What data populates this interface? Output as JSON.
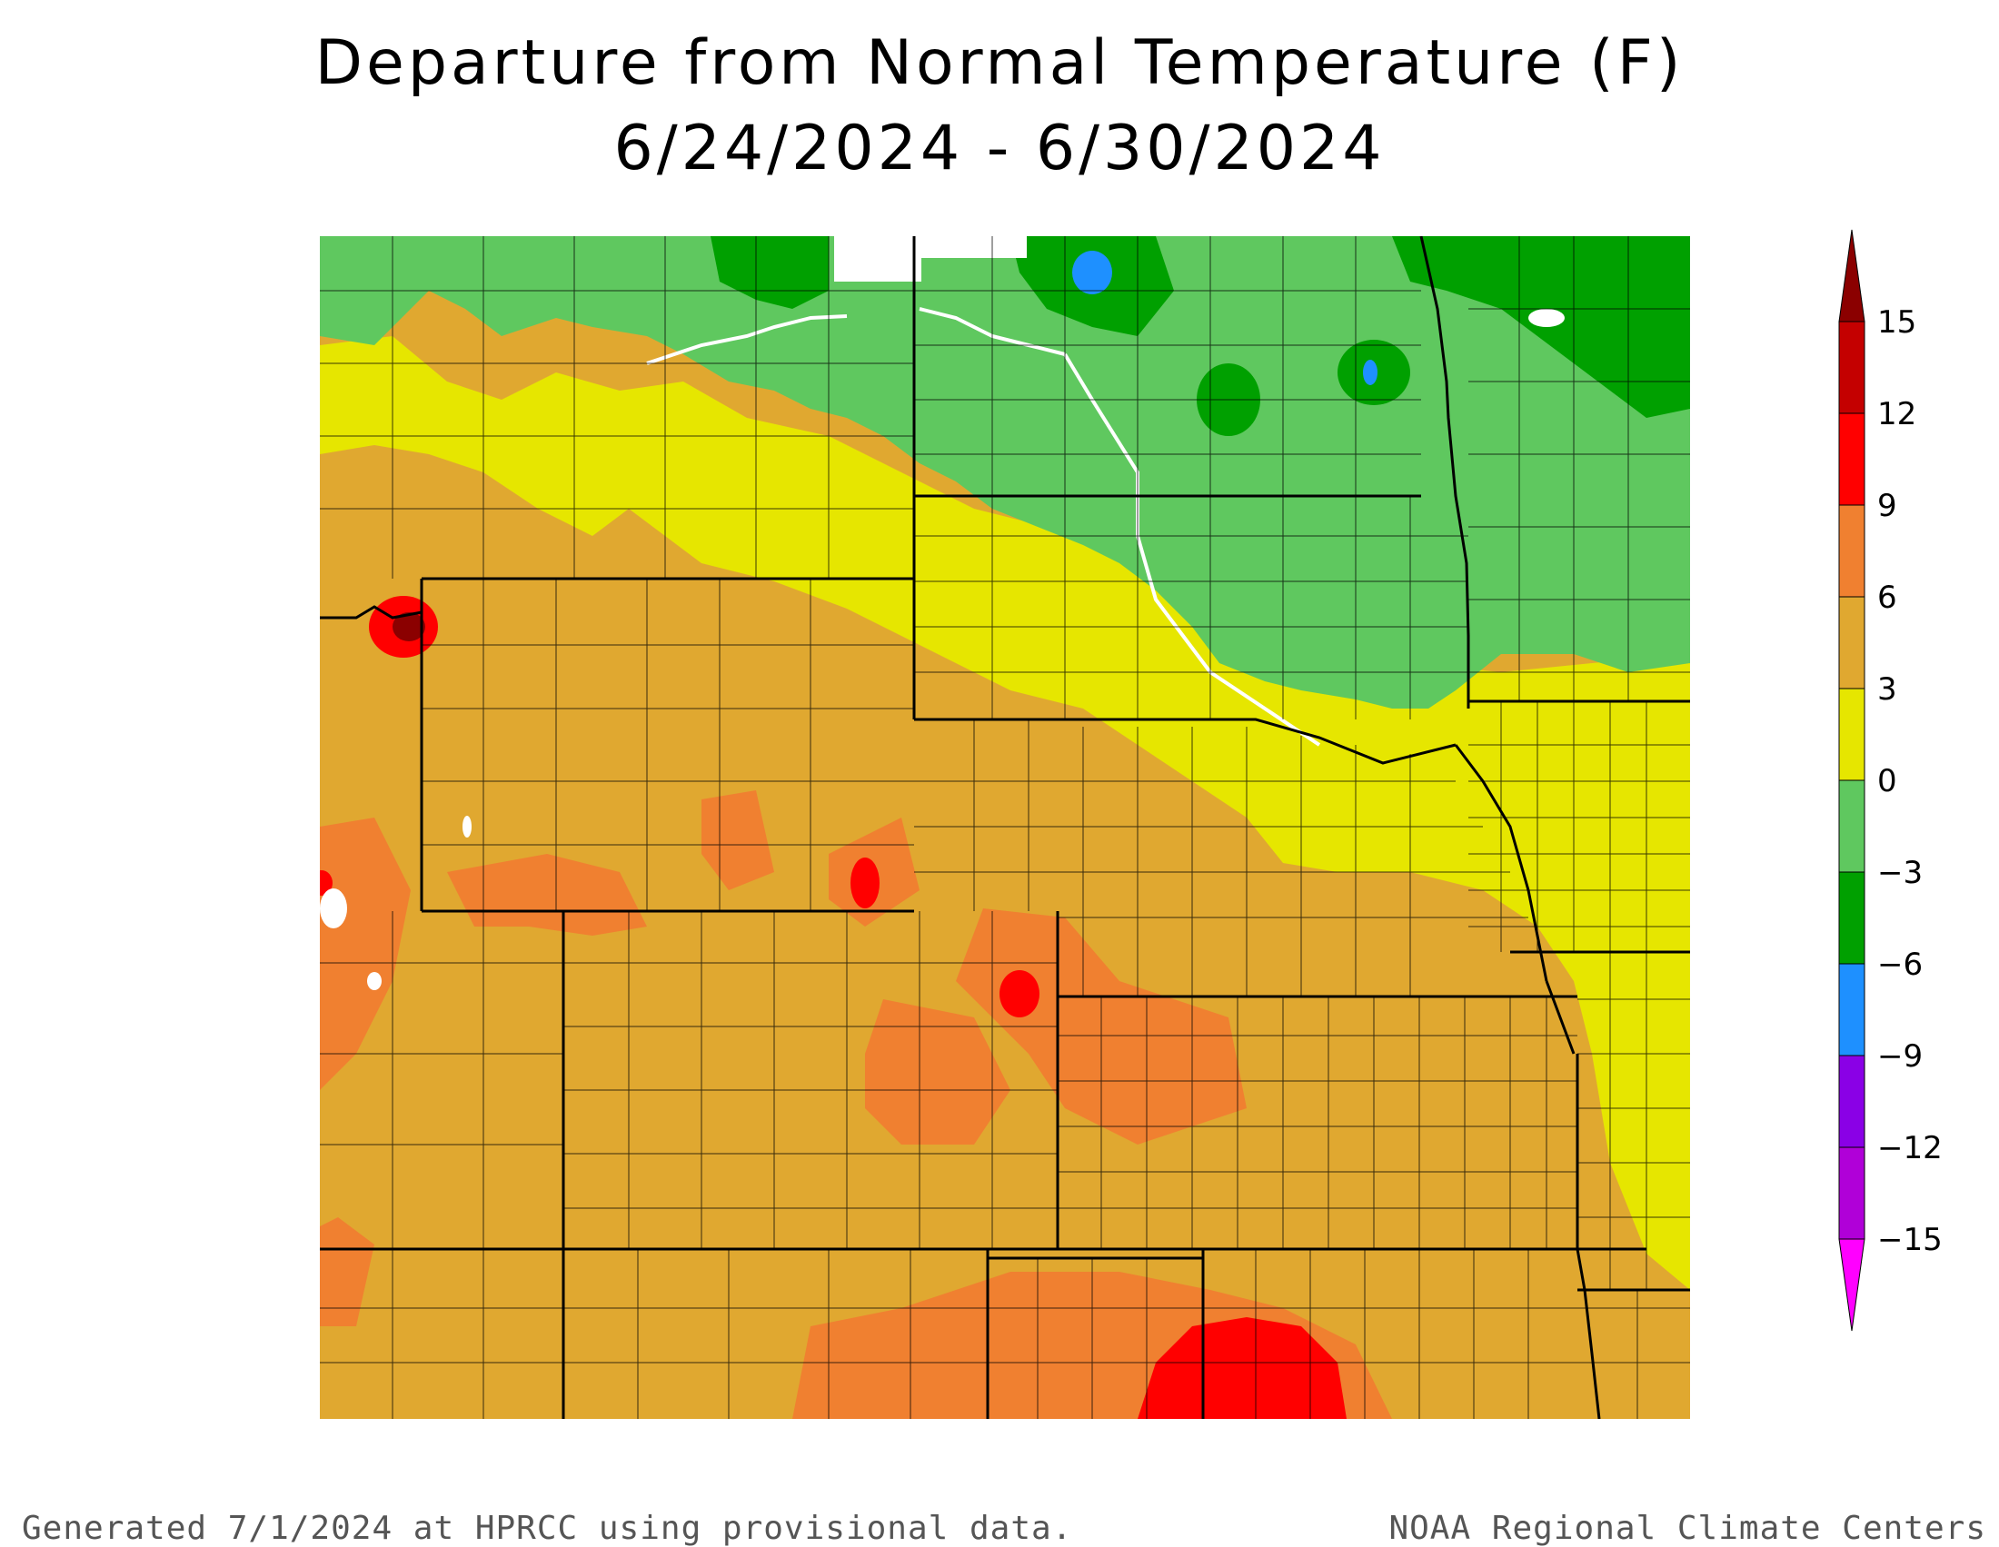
{
  "title": {
    "line1": "Departure from Normal Temperature (F)",
    "line2": "6/24/2024 - 6/30/2024"
  },
  "footer": {
    "left": "Generated 7/1/2024 at HPRCC using provisional data.",
    "right": "NOAA Regional Climate Centers"
  },
  "legend": {
    "bins": [
      {
        "from": 15,
        "to": 18,
        "color": "#8b0000"
      },
      {
        "from": 12,
        "to": 15,
        "color": "#c40000"
      },
      {
        "from": 9,
        "to": 12,
        "color": "#ff0000"
      },
      {
        "from": 6,
        "to": 9,
        "color": "#f08030"
      },
      {
        "from": 3,
        "to": 6,
        "color": "#e0a830"
      },
      {
        "from": 0,
        "to": 3,
        "color": "#e6e600"
      },
      {
        "from": -3,
        "to": 0,
        "color": "#5fc85f"
      },
      {
        "from": -6,
        "to": -3,
        "color": "#00a000"
      },
      {
        "from": -9,
        "to": -6,
        "color": "#1e90ff"
      },
      {
        "from": -12,
        "to": -9,
        "color": "#8a00e6"
      },
      {
        "from": -15,
        "to": -12,
        "color": "#b000d8"
      },
      {
        "from": -18,
        "to": -15,
        "color": "#ff00ff"
      }
    ],
    "labels": [
      "15",
      "12",
      "9",
      "6",
      "3",
      "0",
      "−3",
      "−6",
      "−9",
      "−12",
      "−15"
    ]
  },
  "map": {
    "colors": {
      "dark_red": "#8b0000",
      "red": "#ff0000",
      "orange": "#f08030",
      "light_orange": "#e0a830",
      "yellow": "#e6e600",
      "light_green": "#5fc85f",
      "dark_green": "#00a000",
      "blue": "#1e90ff",
      "water": "#ffffff",
      "border": "#000000"
    }
  }
}
